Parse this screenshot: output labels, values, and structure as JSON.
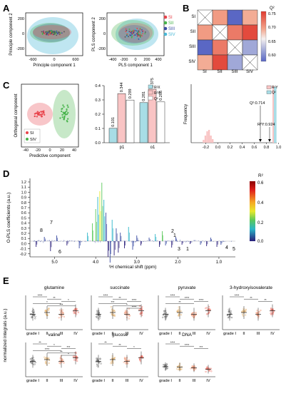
{
  "panel_letters": [
    "A",
    "B",
    "C",
    "D",
    "E"
  ],
  "pca": {
    "xlabel": "Principle component 1",
    "ylabel": "Principle component 2",
    "xticks": [
      "-600",
      "0",
      "600"
    ],
    "yticks": [
      "-200",
      "0",
      "200"
    ]
  },
  "pls": {
    "xlabel": "PLS component 1",
    "ylabel": "PLS component 2",
    "xticks": [
      "-400",
      "-200",
      "0",
      "200",
      "400"
    ],
    "yticks": [
      "-200",
      "0",
      "200"
    ]
  },
  "groups": [
    {
      "name": "SI",
      "color": "#e8434b"
    },
    {
      "name": "SII",
      "color": "#47b34a"
    },
    {
      "name": "SIII",
      "color": "#3b4da3"
    },
    {
      "name": "SIV",
      "color": "#49b8d6"
    }
  ],
  "heatmap": {
    "rows": [
      "SI",
      "SII",
      "SIII",
      "SIV"
    ],
    "cols": [
      "SI",
      "SII",
      "SIII",
      "SIV"
    ],
    "legend_title": "Q²",
    "legend_ticks": [
      "0.75",
      "0.70",
      "0.65",
      "0.60"
    ],
    "values": [
      [
        null,
        0.71,
        0.58,
        0.7
      ],
      [
        0.71,
        null,
        0.73,
        0.76
      ],
      [
        0.58,
        0.73,
        null,
        0.63
      ],
      [
        0.7,
        0.76,
        0.63,
        null
      ]
    ]
  },
  "opls": {
    "xlabel": "Predictive component",
    "ylabel": "Orthogonal component",
    "xticks": [
      "-40",
      "-20",
      "0",
      "20",
      "40"
    ],
    "legend": [
      "SI",
      "SIV"
    ]
  },
  "bars": {
    "legend": [
      "R²X",
      "R²Y",
      "Q²"
    ],
    "categories": [
      "p1",
      "o1"
    ],
    "labels": [
      [
        "0.101",
        "0.344",
        "0.299"
      ],
      [
        "0.281",
        "0.375",
        "0.286"
      ]
    ],
    "values": [
      [
        0.101,
        0.344,
        0.299
      ],
      [
        0.281,
        0.375,
        0.286
      ]
    ],
    "yticks": [
      "0.0",
      "0.1",
      "0.2",
      "0.3",
      "0.4"
    ]
  },
  "perm": {
    "ylabel": "Frequency",
    "xticks": [
      "-0.2",
      "0.0",
      "0.2",
      "0.4",
      "0.6",
      "0.8",
      "1.0"
    ],
    "legend": [
      "R²Y",
      "Q²"
    ],
    "q2_label": "Q²:0.714",
    "r2y_label": "R²Y:0.924"
  },
  "loading": {
    "ylabel": "O-PLS coefficients (a.u.)",
    "xlabel": "¹H chemical shift (ppm)",
    "yticks": [
      "1.2",
      "1.1",
      "1.0",
      "0.9",
      "0.8",
      "0.7",
      "0.6",
      "0.5",
      "0.4",
      "0.3",
      "0.2",
      "0.1",
      "0.0",
      "-0.1",
      "-0.2"
    ],
    "xticks": [
      "5.0",
      "4.0",
      "3.0",
      "2.0",
      "1.0"
    ],
    "peaks": [
      "8",
      "7",
      "6",
      "2",
      "1",
      "3",
      "1",
      "4",
      "5"
    ],
    "cbar_title": "R²",
    "cbar_ticks": [
      "0.6",
      "0.4",
      "0.2",
      "0.0"
    ]
  },
  "metabolites": {
    "ylabel": "normalized integrals (a.u.)",
    "grades": [
      "grade I",
      "II",
      "III",
      "IV"
    ],
    "plots": [
      {
        "title": "glutamine",
        "sig": [
          "****",
          "**",
          "*",
          "*",
          "***"
        ]
      },
      {
        "title": "succinate",
        "sig": [
          "****",
          "**",
          "****",
          "***",
          "*",
          "****"
        ]
      },
      {
        "title": "pyruvate",
        "sig": [
          "****",
          "****",
          "****",
          "**"
        ]
      },
      {
        "title": "3-hydroxyisovalerate",
        "sig": [
          "****",
          "**",
          "**"
        ]
      },
      {
        "title": "valine",
        "sig": [
          "**",
          "*",
          "***",
          "****",
          "**",
          "*"
        ]
      },
      {
        "title": "glucose",
        "sig": [
          "**",
          "**",
          "*"
        ]
      },
      {
        "title": "DNA",
        "sig": [
          "****",
          "****",
          "***"
        ]
      }
    ]
  }
}
